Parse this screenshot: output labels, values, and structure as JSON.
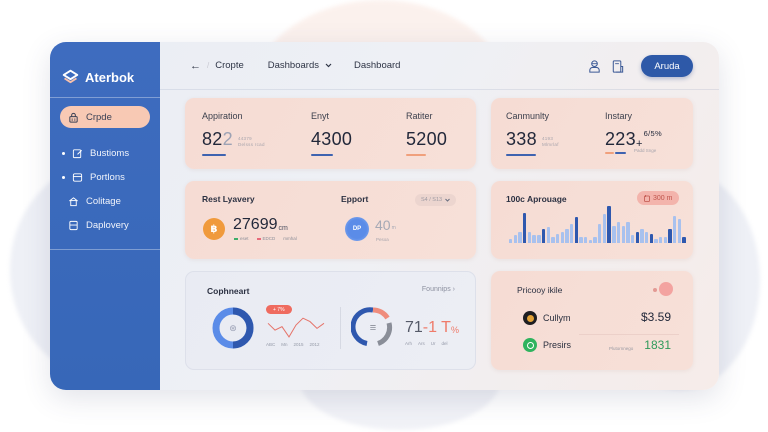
{
  "app": {
    "brand": "Aterbok"
  },
  "sidebar": {
    "items": [
      {
        "label": "Crpde",
        "icon": "lock-icon",
        "active": true
      },
      {
        "label": "Bustioms",
        "icon": "edit-icon",
        "active": false
      },
      {
        "label": "Portlons",
        "icon": "card-icon",
        "active": false
      },
      {
        "label": "Colitage",
        "icon": "home-icon",
        "active": false
      },
      {
        "label": "Daplovery",
        "icon": "document-icon",
        "active": false
      }
    ]
  },
  "topbar": {
    "back_icon": "arrow-left-icon",
    "crumb": "Cropte",
    "dashboards_menu": "Dashboards",
    "dashboard_link": "Dashboard",
    "user_icon": "user-icon",
    "docs_icon": "clipboard-icon",
    "user_button": "Aruda"
  },
  "stats_card_1": {
    "items": [
      {
        "label": "Appiration",
        "value_main": "82",
        "value_dim": "2",
        "sub1": "44379",
        "sub2": "Delsss  rcad",
        "bar_color": "#3e63b0"
      },
      {
        "label": "Enyt",
        "value_main": "4300",
        "bar_color": "#3e63b0"
      },
      {
        "label": "Ratiter",
        "value_main": "5200",
        "bar_color": "#f0a07c"
      }
    ]
  },
  "stats_card_2": {
    "items": [
      {
        "label": "Canmunlty",
        "value_main": "338",
        "sub1": "4193",
        "sub2": "Mlmrlaf",
        "bar_color": "#3e63b0"
      },
      {
        "label": "Instary",
        "value_main": "223",
        "suffix": "+",
        "sup": "6/5%",
        "sub2": "Padd  Snge"
      }
    ]
  },
  "crypto_card": {
    "title": "Rest Lyavery",
    "coin_icon": "bitcoin-icon",
    "value": "27699",
    "unit": "cm",
    "legend": [
      {
        "label": "eset",
        "color": "#3fae6a"
      },
      {
        "label": "EDCD",
        "color": "#e86a7a"
      },
      {
        "label": "mmhal",
        "color": ""
      }
    ],
    "export_title": "Epport",
    "export_coin_label": "DP",
    "export_value": "40",
    "export_unit": "m",
    "export_sub": "Pesoa",
    "period_select": "S4 / S13"
  },
  "usage_card": {
    "title": "100c Aprouage",
    "badge": "300 m",
    "badge_icon": "calendar-icon"
  },
  "chart_data": {
    "type": "bar",
    "title": "100c Aprouage",
    "values": [
      2,
      4,
      6,
      18,
      6,
      4,
      4,
      8,
      9,
      3,
      5,
      6,
      8,
      11,
      15,
      3,
      3,
      1,
      3,
      11,
      17,
      22,
      10,
      12,
      10,
      12,
      4,
      6,
      8,
      6,
      5,
      2,
      3,
      3,
      8,
      16,
      14,
      3
    ],
    "highlight_index": [
      3,
      7,
      14,
      21,
      27,
      30,
      34,
      37
    ],
    "colors": {
      "primary": "#2f58ae",
      "secondary": "#a8c1ee"
    }
  },
  "compare_card": {
    "title": "Cophneart",
    "link": "Founnips",
    "donut_icon": "chart-icon",
    "trend_badge": "+ 7%",
    "trend_axis": [
      "ABC",
      "Mn",
      "2015",
      "2012"
    ],
    "trend_points": [
      22,
      14,
      18,
      6,
      20,
      28,
      24,
      16,
      22
    ],
    "gauge_icon": "filter-icon",
    "gauge_value": "71",
    "gauge_value_accent": "-1 T",
    "gauge_unit": "%",
    "gauge_axis": [
      "Arh",
      "Ars",
      "Ur",
      "del"
    ]
  },
  "price_card": {
    "title": "Pricooy ikile",
    "rows": [
      {
        "icon": "coin-icon",
        "name": "Cullym",
        "value": "$3.59",
        "sub": "",
        "value_color": "#22283a"
      },
      {
        "icon": "check-circle-icon",
        "name": "Presirs",
        "value": "1831",
        "sub": "Plutornnego",
        "value_color": "#2f9a5a"
      }
    ]
  }
}
